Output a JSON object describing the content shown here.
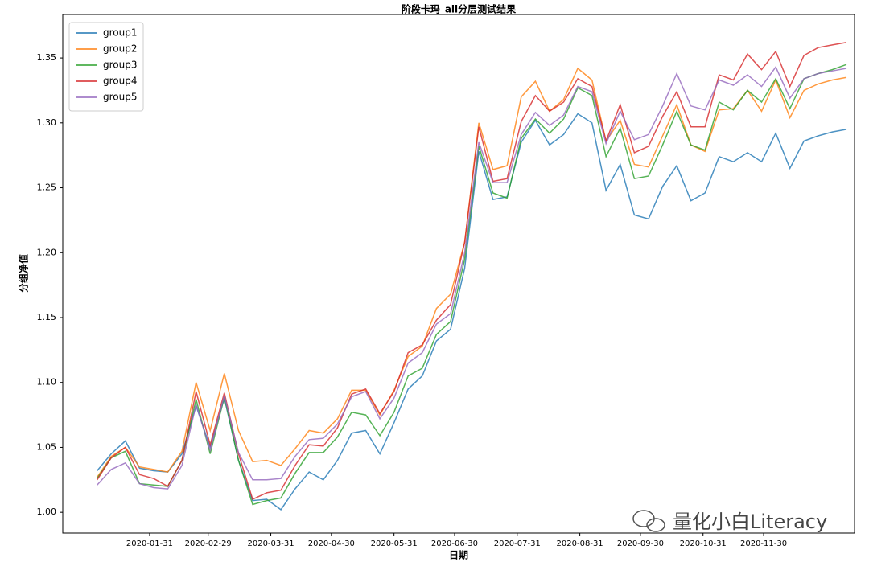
{
  "chart_data": {
    "type": "line",
    "title": "阶段卡玛_all分层测试结果",
    "xlabel": "日期",
    "ylabel": "分组净值",
    "watermark": "量化小白Literacy",
    "legend": "upper left",
    "x": [
      "2020-01-05",
      "2020-01-12",
      "2020-01-19",
      "2020-01-26",
      "2020-02-02",
      "2020-02-09",
      "2020-02-16",
      "2020-02-23",
      "2020-03-01",
      "2020-03-08",
      "2020-03-15",
      "2020-03-22",
      "2020-03-29",
      "2020-04-05",
      "2020-04-12",
      "2020-04-19",
      "2020-04-26",
      "2020-05-03",
      "2020-05-10",
      "2020-05-17",
      "2020-05-24",
      "2020-05-31",
      "2020-06-07",
      "2020-06-14",
      "2020-06-21",
      "2020-06-28",
      "2020-07-05",
      "2020-07-12",
      "2020-07-19",
      "2020-07-26",
      "2020-08-02",
      "2020-08-09",
      "2020-08-16",
      "2020-08-23",
      "2020-08-30",
      "2020-09-06",
      "2020-09-13",
      "2020-09-20",
      "2020-09-27",
      "2020-10-04",
      "2020-10-11",
      "2020-10-18",
      "2020-10-25",
      "2020-11-01",
      "2020-11-08",
      "2020-11-15",
      "2020-11-22",
      "2020-11-29",
      "2020-12-06",
      "2020-12-13",
      "2020-12-20",
      "2020-12-27",
      "2021-01-03",
      "2021-01-10"
    ],
    "xlim": [
      "2019-12-19",
      "2021-01-14"
    ],
    "xticks": [
      "2020-01-31",
      "2020-02-29",
      "2020-03-31",
      "2020-04-30",
      "2020-05-31",
      "2020-06-30",
      "2020-07-31",
      "2020-08-31",
      "2020-09-30",
      "2020-10-31",
      "2020-11-30"
    ],
    "ylim": [
      0.984,
      1.3835
    ],
    "yticks": [
      {
        "value": 1,
        "label": "1.00"
      },
      {
        "value": 1.05,
        "label": "1.05"
      },
      {
        "value": 1.1,
        "label": "1.10"
      },
      {
        "value": 1.15,
        "label": "1.15"
      },
      {
        "value": 1.2,
        "label": "1.20"
      },
      {
        "value": 1.25,
        "label": "1.25"
      },
      {
        "value": 1.3,
        "label": "1.30"
      },
      {
        "value": 1.35,
        "label": "1.35"
      }
    ],
    "series": [
      {
        "name": "group1",
        "color": "#1f77b4",
        "values": [
          1.032,
          1.045,
          1.055,
          1.034,
          1.032,
          1.031,
          1.045,
          1.082,
          1.05,
          1.088,
          1.04,
          1.009,
          1.01,
          1.002,
          1.018,
          1.031,
          1.025,
          1.04,
          1.061,
          1.063,
          1.045,
          1.069,
          1.095,
          1.105,
          1.132,
          1.141,
          1.188,
          1.278,
          1.241,
          1.243,
          1.285,
          1.302,
          1.283,
          1.291,
          1.307,
          1.3,
          1.248,
          1.268,
          1.229,
          1.226,
          1.251,
          1.267,
          1.24,
          1.246,
          1.274,
          1.27,
          1.277,
          1.27,
          1.292,
          1.265,
          1.286,
          1.29,
          1.293,
          1.295
        ]
      },
      {
        "name": "group2",
        "color": "#ff7f0e",
        "values": [
          1.027,
          1.043,
          1.05,
          1.035,
          1.033,
          1.031,
          1.047,
          1.1,
          1.063,
          1.107,
          1.063,
          1.039,
          1.04,
          1.036,
          1.049,
          1.063,
          1.061,
          1.072,
          1.094,
          1.094,
          1.075,
          1.094,
          1.12,
          1.128,
          1.157,
          1.168,
          1.208,
          1.3,
          1.264,
          1.267,
          1.32,
          1.332,
          1.309,
          1.318,
          1.342,
          1.333,
          1.286,
          1.302,
          1.268,
          1.266,
          1.29,
          1.314,
          1.283,
          1.278,
          1.31,
          1.311,
          1.325,
          1.309,
          1.333,
          1.304,
          1.325,
          1.33,
          1.333,
          1.335
        ]
      },
      {
        "name": "group3",
        "color": "#2ca02c",
        "values": [
          1.026,
          1.042,
          1.047,
          1.022,
          1.021,
          1.02,
          1.04,
          1.087,
          1.045,
          1.089,
          1.04,
          1.006,
          1.009,
          1.011,
          1.03,
          1.046,
          1.046,
          1.058,
          1.077,
          1.075,
          1.059,
          1.077,
          1.105,
          1.111,
          1.137,
          1.147,
          1.195,
          1.282,
          1.246,
          1.242,
          1.288,
          1.303,
          1.292,
          1.303,
          1.327,
          1.321,
          1.274,
          1.296,
          1.257,
          1.259,
          1.283,
          1.309,
          1.283,
          1.279,
          1.316,
          1.31,
          1.325,
          1.316,
          1.334,
          1.311,
          1.334,
          1.338,
          1.341,
          1.345
        ]
      },
      {
        "name": "group4",
        "color": "#d62728",
        "values": [
          1.025,
          1.042,
          1.05,
          1.029,
          1.026,
          1.02,
          1.04,
          1.093,
          1.052,
          1.092,
          1.045,
          1.01,
          1.015,
          1.017,
          1.036,
          1.052,
          1.051,
          1.065,
          1.091,
          1.095,
          1.076,
          1.093,
          1.123,
          1.129,
          1.148,
          1.16,
          1.208,
          1.297,
          1.255,
          1.257,
          1.301,
          1.321,
          1.309,
          1.316,
          1.334,
          1.328,
          1.286,
          1.314,
          1.277,
          1.282,
          1.305,
          1.324,
          1.297,
          1.297,
          1.337,
          1.333,
          1.353,
          1.341,
          1.355,
          1.328,
          1.352,
          1.358,
          1.36,
          1.362
        ]
      },
      {
        "name": "group5",
        "color": "#9467bd",
        "values": [
          1.021,
          1.033,
          1.038,
          1.022,
          1.019,
          1.018,
          1.036,
          1.083,
          1.048,
          1.09,
          1.046,
          1.025,
          1.025,
          1.026,
          1.043,
          1.056,
          1.057,
          1.068,
          1.089,
          1.093,
          1.072,
          1.088,
          1.115,
          1.123,
          1.145,
          1.153,
          1.2,
          1.285,
          1.254,
          1.254,
          1.291,
          1.308,
          1.298,
          1.306,
          1.328,
          1.324,
          1.284,
          1.309,
          1.287,
          1.291,
          1.313,
          1.338,
          1.313,
          1.31,
          1.333,
          1.329,
          1.337,
          1.328,
          1.343,
          1.319,
          1.334,
          1.338,
          1.34,
          1.342
        ]
      }
    ]
  }
}
